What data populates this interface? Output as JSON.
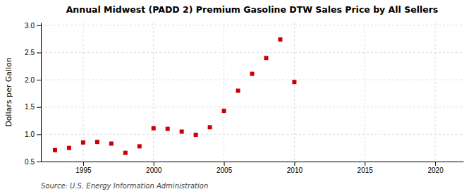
{
  "chart_data": {
    "type": "scatter",
    "title": "Annual Midwest (PADD 2) Premium Gasoline DTW Sales Price by All Sellers",
    "ylabel": "Dollars per Gallon",
    "source": "Source: U.S. Energy Information Administration",
    "x": [
      1993,
      1994,
      1995,
      1996,
      1997,
      1998,
      1999,
      2000,
      2001,
      2002,
      2003,
      2004,
      2005,
      2006,
      2007,
      2008,
      2009,
      2010
    ],
    "values": [
      0.71,
      0.75,
      0.85,
      0.86,
      0.83,
      0.66,
      0.78,
      1.11,
      1.1,
      1.05,
      0.99,
      1.13,
      1.43,
      1.8,
      2.11,
      2.4,
      2.74,
      1.96
    ],
    "color": "#cc0000",
    "marker": "square",
    "xlim": [
      1992,
      2022
    ],
    "ylim": [
      0.5,
      3.05
    ],
    "xticks": [
      1995,
      2000,
      2005,
      2010,
      2015,
      2020
    ],
    "yticks": [
      0.5,
      {
        "value": 1.0,
        "label": "1.0"
      },
      1.5,
      {
        "value": 2.0,
        "label": "2.0"
      },
      2.5,
      {
        "value": 3.0,
        "label": "3.0"
      }
    ],
    "grid": true
  }
}
